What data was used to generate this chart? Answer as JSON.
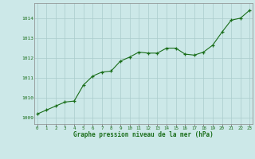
{
  "x": [
    0,
    1,
    2,
    3,
    4,
    5,
    6,
    7,
    8,
    9,
    10,
    11,
    12,
    13,
    14,
    15,
    16,
    17,
    18,
    19,
    20,
    21,
    22,
    23
  ],
  "y": [
    1009.2,
    1009.4,
    1009.6,
    1009.8,
    1009.85,
    1010.65,
    1011.1,
    1011.3,
    1011.35,
    1011.85,
    1012.05,
    1012.3,
    1012.25,
    1012.25,
    1012.5,
    1012.5,
    1012.2,
    1012.15,
    1012.3,
    1012.65,
    1013.3,
    1013.9,
    1014.0,
    1014.4
  ],
  "line_color": "#1a6e1a",
  "marker_color": "#1a6e1a",
  "bg_color": "#cce8e8",
  "grid_color": "#aacccc",
  "title": "Graphe pression niveau de la mer (hPa)",
  "title_color": "#1a6e1a",
  "ylabel_values": [
    1009,
    1010,
    1011,
    1012,
    1013,
    1014
  ],
  "xlabel_values": [
    0,
    1,
    2,
    3,
    4,
    5,
    6,
    7,
    8,
    9,
    10,
    11,
    12,
    13,
    14,
    15,
    16,
    17,
    18,
    19,
    20,
    21,
    22,
    23
  ],
  "ylim": [
    1008.7,
    1014.75
  ],
  "xlim": [
    -0.3,
    23.3
  ]
}
